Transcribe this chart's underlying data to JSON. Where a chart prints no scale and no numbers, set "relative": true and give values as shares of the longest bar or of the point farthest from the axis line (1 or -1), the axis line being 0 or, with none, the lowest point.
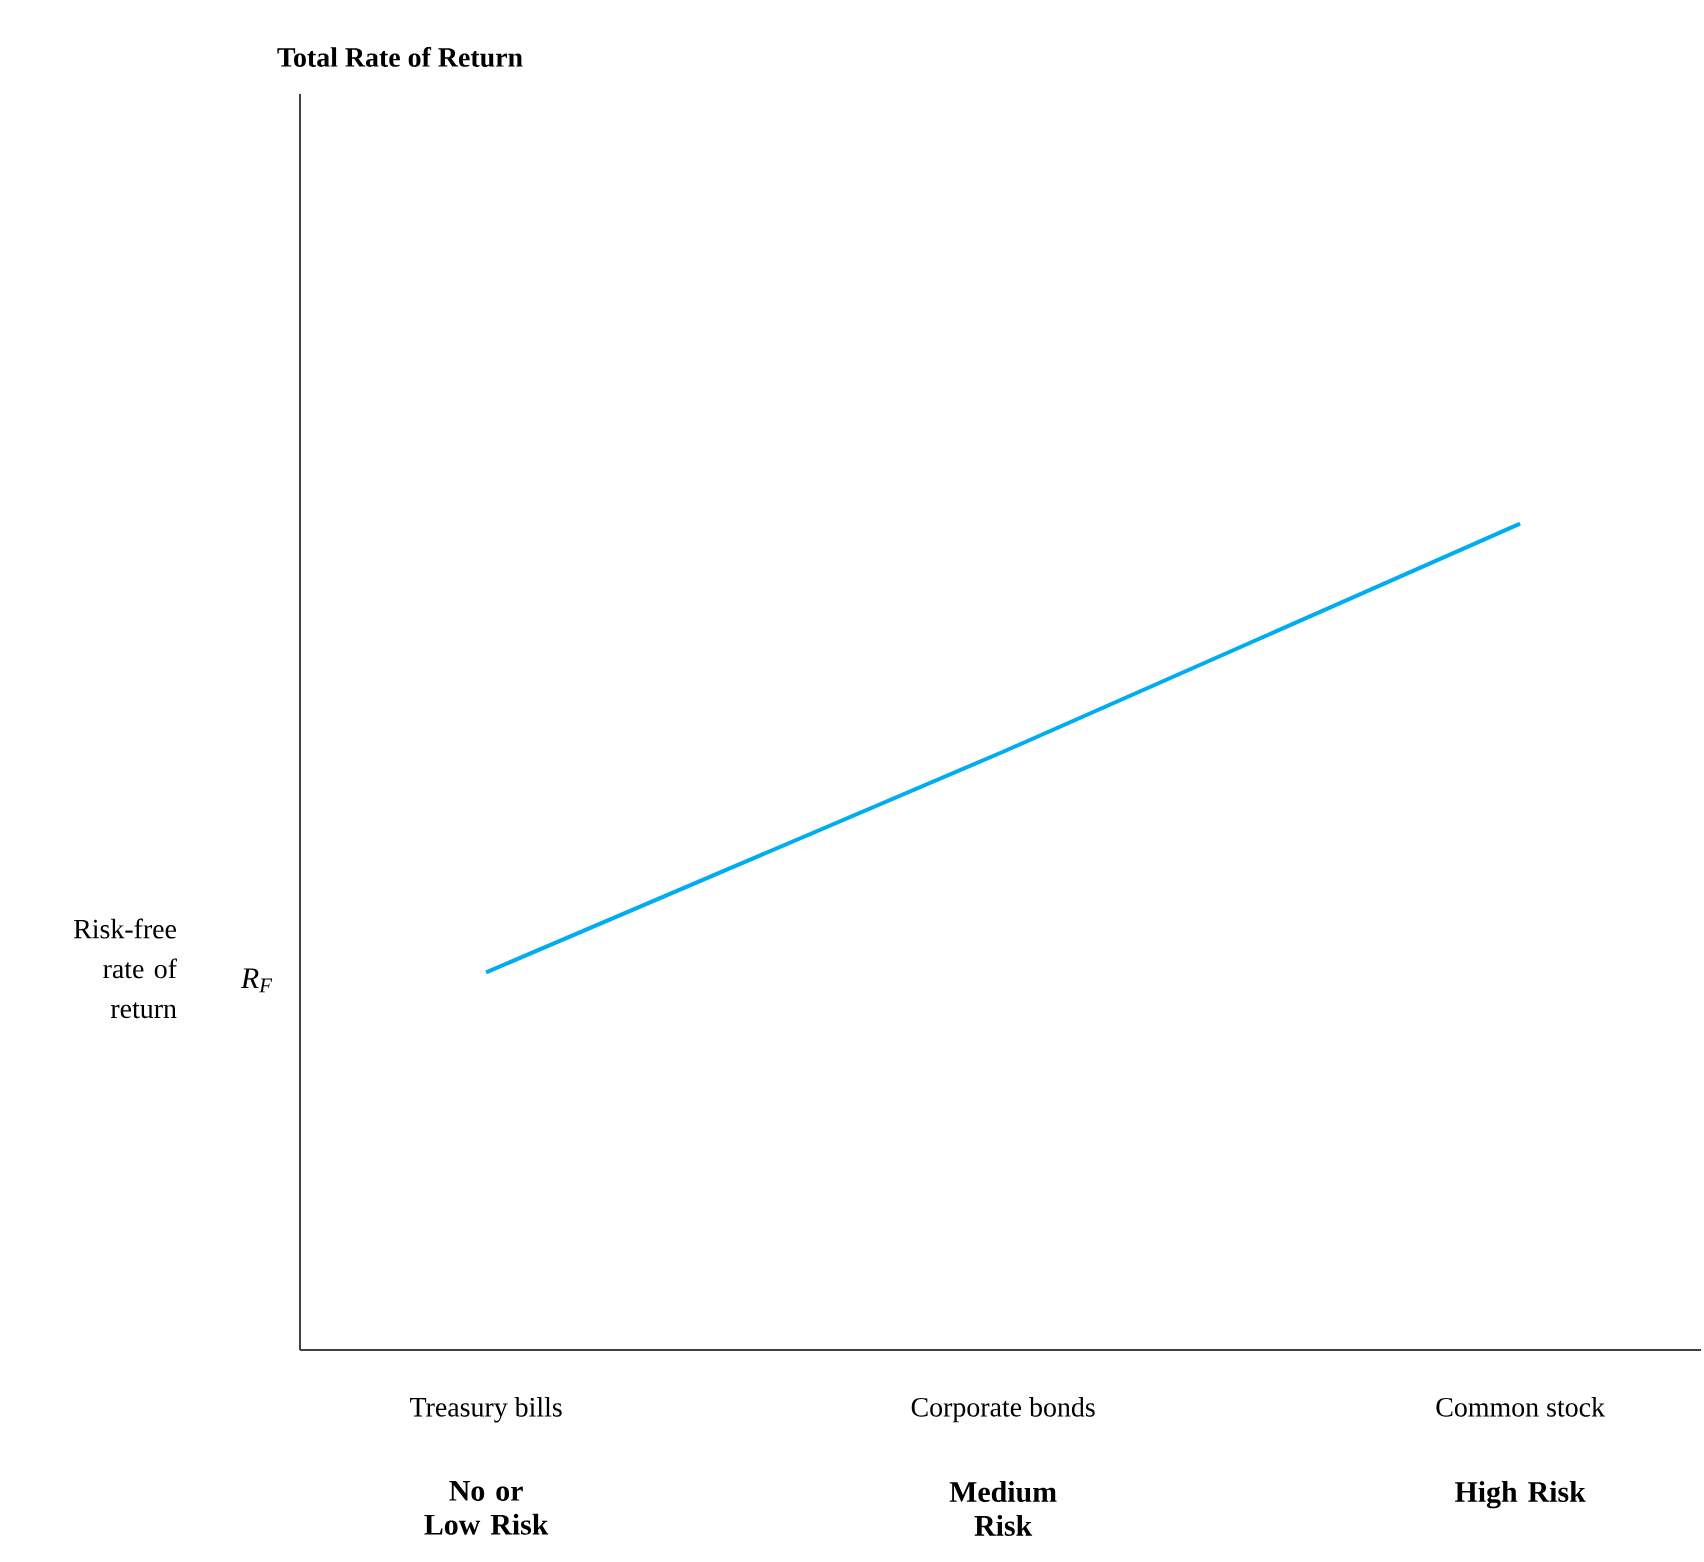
{
  "chart_data": {
    "type": "line",
    "relative": true,
    "title": "Total Rate of Return",
    "categories": [
      "Treasury bills",
      "Corporate bonds",
      "Common stock"
    ],
    "series": [
      {
        "values": [
          0.457,
          0.724,
          1
        ],
        "color": "#00aeef"
      }
    ],
    "annotations": [
      "No or Low Risk",
      "Medium Risk",
      "High Risk",
      "R$_{F}$",
      "Risk-free rate of return"
    ]
  }
}
